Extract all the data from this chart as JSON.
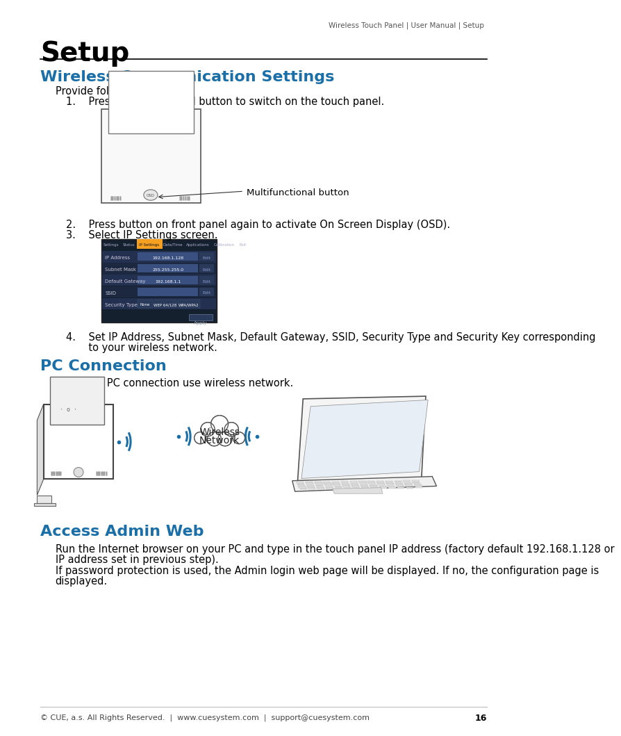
{
  "header_text": "Wireless Touch Panel | User Manual | Setup",
  "page_title": "Setup",
  "section1_title": "Wireless Communication Settings",
  "section1_subtitle": "Provide following steps",
  "step1": "1.    Press multifunctional button to switch on the touch panel.",
  "step2": "2.    Press button on front panel again to activate On Screen Display (OSD).",
  "step3": "3.    Select IP Settings screen.",
  "step4_line1": "4.    Set IP Address, Subnet Mask, Default Gateway, SSID, Security Type and Security Key corresponding",
  "step4_line2": "       to your wireless network.",
  "section2_title": "PC Connection",
  "section2_body": "For direct PC connection use wireless network.",
  "section3_title": "Access Admin Web",
  "section3_body1_line1": "Run the Internet browser on your PC and type in the touch panel IP address (factory default 192.168.1.128 or",
  "section3_body1_line2": "IP address set in previous step).",
  "section3_body2_line1": "If password protection is used, the Admin login web page will be displayed. If no, the configuration page is",
  "section3_body2_line2": "displayed.",
  "footer_text": "© CUE, a.s. All Rights Reserved.  |  www.cuesystem.com  |  support@cuesystem.com",
  "page_number": "16",
  "blue_color": "#1a6fa8",
  "header_color": "#555555",
  "text_color": "#000000",
  "line_color": "#555555",
  "bg_color": "#ffffff"
}
